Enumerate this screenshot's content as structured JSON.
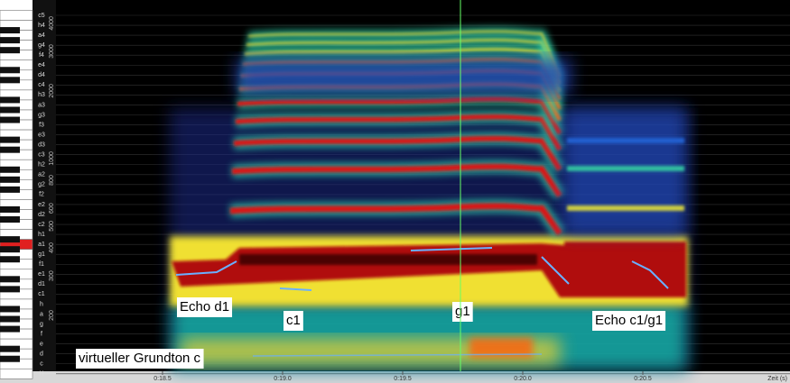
{
  "keyboard": {
    "keys": [
      "c5",
      "h4",
      "a4",
      "g4",
      "f4",
      "e4",
      "d4",
      "c4",
      "h3",
      "a3",
      "g3",
      "f3",
      "e3",
      "d3",
      "c3",
      "h2",
      "a2",
      "g2",
      "f2",
      "e2",
      "d2",
      "c2",
      "h1",
      "a1",
      "g1",
      "f1",
      "e1",
      "d1",
      "c1",
      "h",
      "a",
      "g",
      "f",
      "e",
      "d",
      "c",
      "H"
    ],
    "highlight": "a1"
  },
  "frequency_axis": {
    "ticks": [
      4000,
      3000,
      2000,
      1000,
      800,
      600,
      500,
      400,
      300,
      200
    ]
  },
  "time_axis": {
    "ticks": [
      "0:18.5",
      "0:19.0",
      "0:19.5",
      "0:20.0",
      "0:20.5"
    ],
    "label": "Zeit (s)"
  },
  "annotations": [
    "Echo d1",
    "c1",
    "g1",
    "Echo c1/g1",
    "virtueller Grundton c"
  ]
}
